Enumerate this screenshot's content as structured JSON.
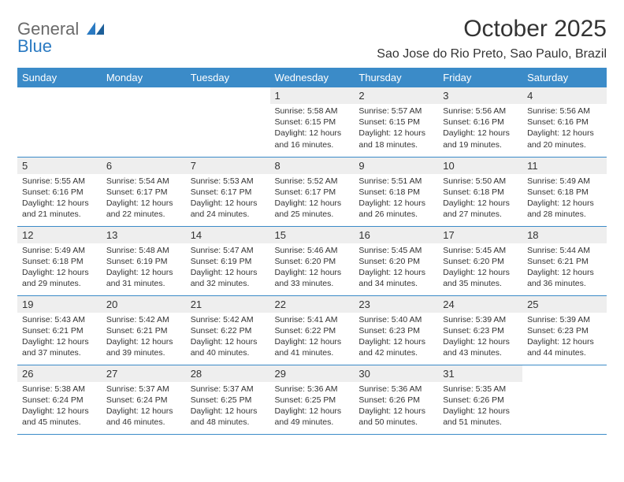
{
  "logo": {
    "line1": "General",
    "line2": "Blue"
  },
  "title": "October 2025",
  "location": "Sao Jose do Rio Preto, Sao Paulo, Brazil",
  "colors": {
    "header_bg": "#3b8bc8",
    "header_text": "#ffffff",
    "daynum_bg": "#eeeeee",
    "border": "#3b8bc8",
    "text": "#333333",
    "logo_gray": "#6a6a6a",
    "logo_blue": "#2a7ac2",
    "background": "#ffffff"
  },
  "days_of_week": [
    "Sunday",
    "Monday",
    "Tuesday",
    "Wednesday",
    "Thursday",
    "Friday",
    "Saturday"
  ],
  "weeks": [
    [
      null,
      null,
      null,
      {
        "n": "1",
        "sr": "5:58 AM",
        "ss": "6:15 PM",
        "dl": "12 hours and 16 minutes."
      },
      {
        "n": "2",
        "sr": "5:57 AM",
        "ss": "6:15 PM",
        "dl": "12 hours and 18 minutes."
      },
      {
        "n": "3",
        "sr": "5:56 AM",
        "ss": "6:16 PM",
        "dl": "12 hours and 19 minutes."
      },
      {
        "n": "4",
        "sr": "5:56 AM",
        "ss": "6:16 PM",
        "dl": "12 hours and 20 minutes."
      }
    ],
    [
      {
        "n": "5",
        "sr": "5:55 AM",
        "ss": "6:16 PM",
        "dl": "12 hours and 21 minutes."
      },
      {
        "n": "6",
        "sr": "5:54 AM",
        "ss": "6:17 PM",
        "dl": "12 hours and 22 minutes."
      },
      {
        "n": "7",
        "sr": "5:53 AM",
        "ss": "6:17 PM",
        "dl": "12 hours and 24 minutes."
      },
      {
        "n": "8",
        "sr": "5:52 AM",
        "ss": "6:17 PM",
        "dl": "12 hours and 25 minutes."
      },
      {
        "n": "9",
        "sr": "5:51 AM",
        "ss": "6:18 PM",
        "dl": "12 hours and 26 minutes."
      },
      {
        "n": "10",
        "sr": "5:50 AM",
        "ss": "6:18 PM",
        "dl": "12 hours and 27 minutes."
      },
      {
        "n": "11",
        "sr": "5:49 AM",
        "ss": "6:18 PM",
        "dl": "12 hours and 28 minutes."
      }
    ],
    [
      {
        "n": "12",
        "sr": "5:49 AM",
        "ss": "6:18 PM",
        "dl": "12 hours and 29 minutes."
      },
      {
        "n": "13",
        "sr": "5:48 AM",
        "ss": "6:19 PM",
        "dl": "12 hours and 31 minutes."
      },
      {
        "n": "14",
        "sr": "5:47 AM",
        "ss": "6:19 PM",
        "dl": "12 hours and 32 minutes."
      },
      {
        "n": "15",
        "sr": "5:46 AM",
        "ss": "6:20 PM",
        "dl": "12 hours and 33 minutes."
      },
      {
        "n": "16",
        "sr": "5:45 AM",
        "ss": "6:20 PM",
        "dl": "12 hours and 34 minutes."
      },
      {
        "n": "17",
        "sr": "5:45 AM",
        "ss": "6:20 PM",
        "dl": "12 hours and 35 minutes."
      },
      {
        "n": "18",
        "sr": "5:44 AM",
        "ss": "6:21 PM",
        "dl": "12 hours and 36 minutes."
      }
    ],
    [
      {
        "n": "19",
        "sr": "5:43 AM",
        "ss": "6:21 PM",
        "dl": "12 hours and 37 minutes."
      },
      {
        "n": "20",
        "sr": "5:42 AM",
        "ss": "6:21 PM",
        "dl": "12 hours and 39 minutes."
      },
      {
        "n": "21",
        "sr": "5:42 AM",
        "ss": "6:22 PM",
        "dl": "12 hours and 40 minutes."
      },
      {
        "n": "22",
        "sr": "5:41 AM",
        "ss": "6:22 PM",
        "dl": "12 hours and 41 minutes."
      },
      {
        "n": "23",
        "sr": "5:40 AM",
        "ss": "6:23 PM",
        "dl": "12 hours and 42 minutes."
      },
      {
        "n": "24",
        "sr": "5:39 AM",
        "ss": "6:23 PM",
        "dl": "12 hours and 43 minutes."
      },
      {
        "n": "25",
        "sr": "5:39 AM",
        "ss": "6:23 PM",
        "dl": "12 hours and 44 minutes."
      }
    ],
    [
      {
        "n": "26",
        "sr": "5:38 AM",
        "ss": "6:24 PM",
        "dl": "12 hours and 45 minutes."
      },
      {
        "n": "27",
        "sr": "5:37 AM",
        "ss": "6:24 PM",
        "dl": "12 hours and 46 minutes."
      },
      {
        "n": "28",
        "sr": "5:37 AM",
        "ss": "6:25 PM",
        "dl": "12 hours and 48 minutes."
      },
      {
        "n": "29",
        "sr": "5:36 AM",
        "ss": "6:25 PM",
        "dl": "12 hours and 49 minutes."
      },
      {
        "n": "30",
        "sr": "5:36 AM",
        "ss": "6:26 PM",
        "dl": "12 hours and 50 minutes."
      },
      {
        "n": "31",
        "sr": "5:35 AM",
        "ss": "6:26 PM",
        "dl": "12 hours and 51 minutes."
      },
      null
    ]
  ],
  "labels": {
    "sunrise": "Sunrise:",
    "sunset": "Sunset:",
    "daylight": "Daylight:"
  }
}
